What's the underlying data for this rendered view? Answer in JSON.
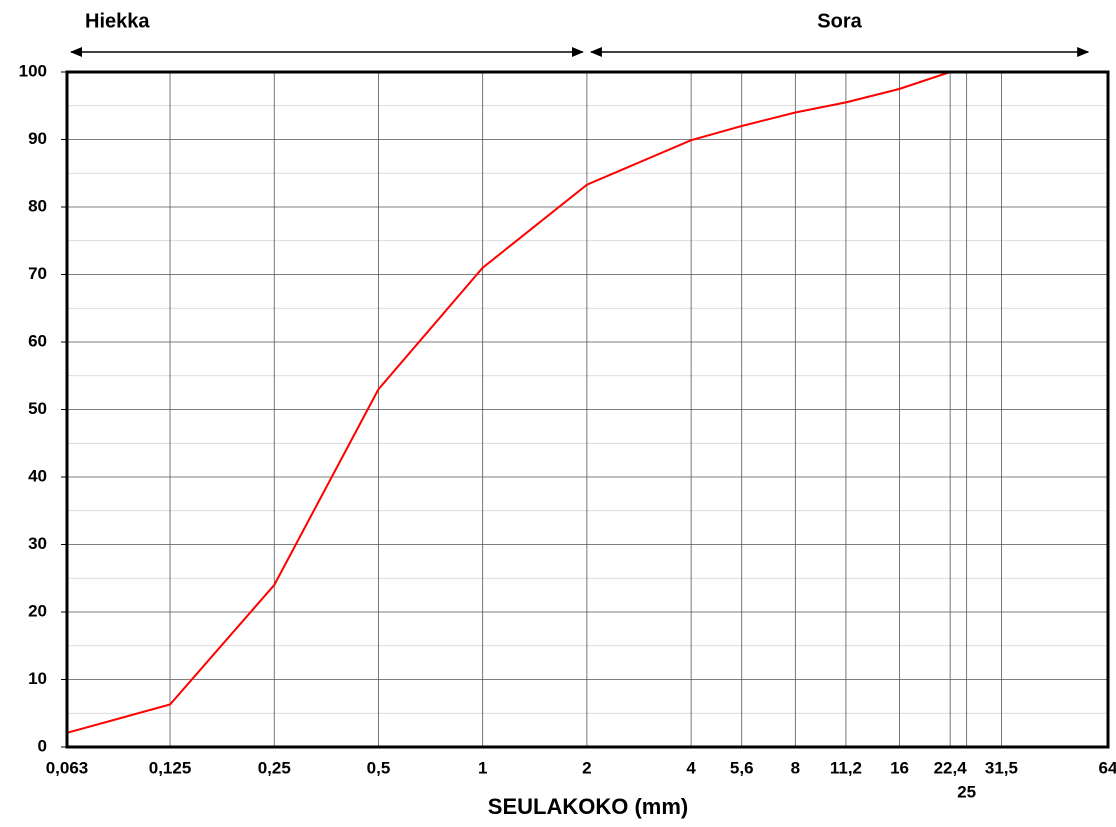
{
  "chart_data": {
    "type": "line",
    "x_label": "SEULAKOKO  (mm)",
    "x_scale": "log",
    "xlim": [
      0.063,
      64
    ],
    "ylim": [
      0,
      100
    ],
    "xticks": [
      {
        "value": 0.063,
        "label": "0,063"
      },
      {
        "value": 0.125,
        "label": "0,125"
      },
      {
        "value": 0.25,
        "label": "0,25"
      },
      {
        "value": 0.5,
        "label": "0,5"
      },
      1,
      2,
      4,
      {
        "value": 5.6,
        "label": "5,6"
      },
      8,
      {
        "value": 11.2,
        "label": "11,2"
      },
      16,
      {
        "value": 22.4,
        "label": "22,4"
      },
      25,
      {
        "value": 31.5,
        "label": "31,5"
      },
      64
    ],
    "yticks": [
      0,
      10,
      20,
      30,
      40,
      50,
      60,
      70,
      80,
      90,
      100
    ],
    "yminorticks": [
      5,
      15,
      25,
      35,
      45,
      55,
      65,
      75,
      85,
      95
    ],
    "grid": true,
    "annotations": [
      {
        "text": "Hiekka",
        "span": [
          0.063,
          2
        ]
      },
      {
        "text": "Sora",
        "span": [
          2,
          57.6
        ]
      }
    ],
    "x": [
      0.063,
      0.125,
      0.25,
      0.5,
      1,
      2,
      4,
      5.6,
      8,
      11.2,
      16,
      22.4,
      31.5
    ],
    "series": [
      {
        "color": "#ff0000",
        "values": [
          2.1,
          6.3,
          24.0,
          53.0,
          71.0,
          83.3,
          89.9,
          92.0,
          94.0,
          95.5,
          97.5,
          100,
          100
        ]
      }
    ]
  }
}
